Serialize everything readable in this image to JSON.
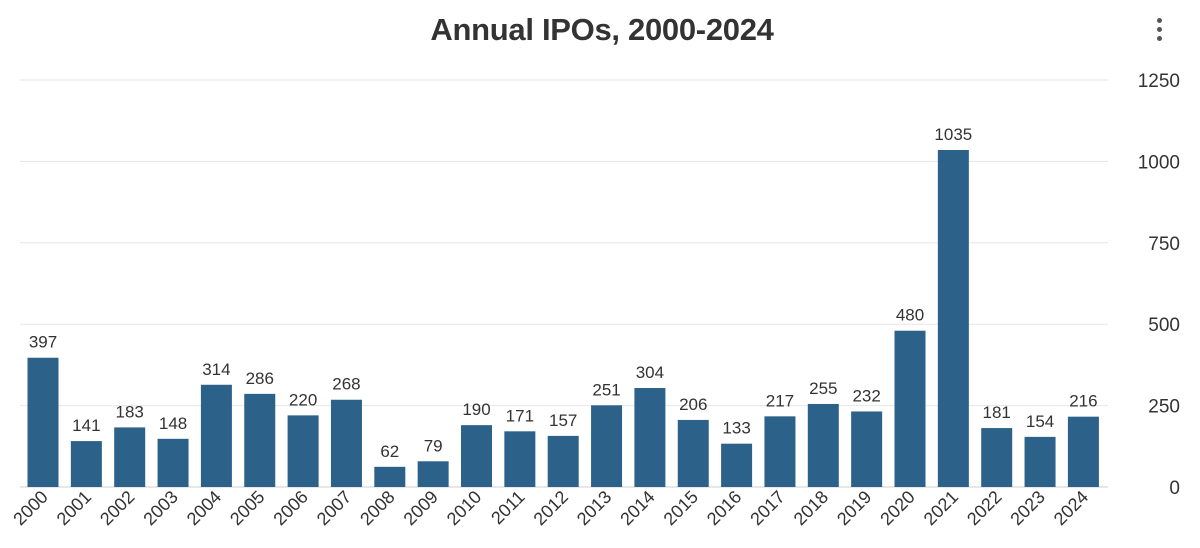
{
  "chart_data": {
    "type": "bar",
    "title": "Annual IPOs, 2000-2024",
    "categories": [
      "2000",
      "2001",
      "2002",
      "2003",
      "2004",
      "2005",
      "2006",
      "2007",
      "2008",
      "2009",
      "2010",
      "2011",
      "2012",
      "2013",
      "2014",
      "2015",
      "2016",
      "2017",
      "2018",
      "2019",
      "2020",
      "2021",
      "2022",
      "2023",
      "2024"
    ],
    "values": [
      397,
      141,
      183,
      148,
      314,
      286,
      220,
      268,
      62,
      79,
      190,
      171,
      157,
      251,
      304,
      206,
      133,
      217,
      255,
      232,
      480,
      1035,
      181,
      154,
      216
    ],
    "y_ticks": [
      "0",
      "250",
      "500",
      "750",
      "1000",
      "1250"
    ],
    "ylim": [
      0,
      1250
    ],
    "xlabel": "",
    "ylabel": "",
    "y_axis_position": "right",
    "grid": true,
    "data_labels": true,
    "bar_color": "#2c6289"
  }
}
